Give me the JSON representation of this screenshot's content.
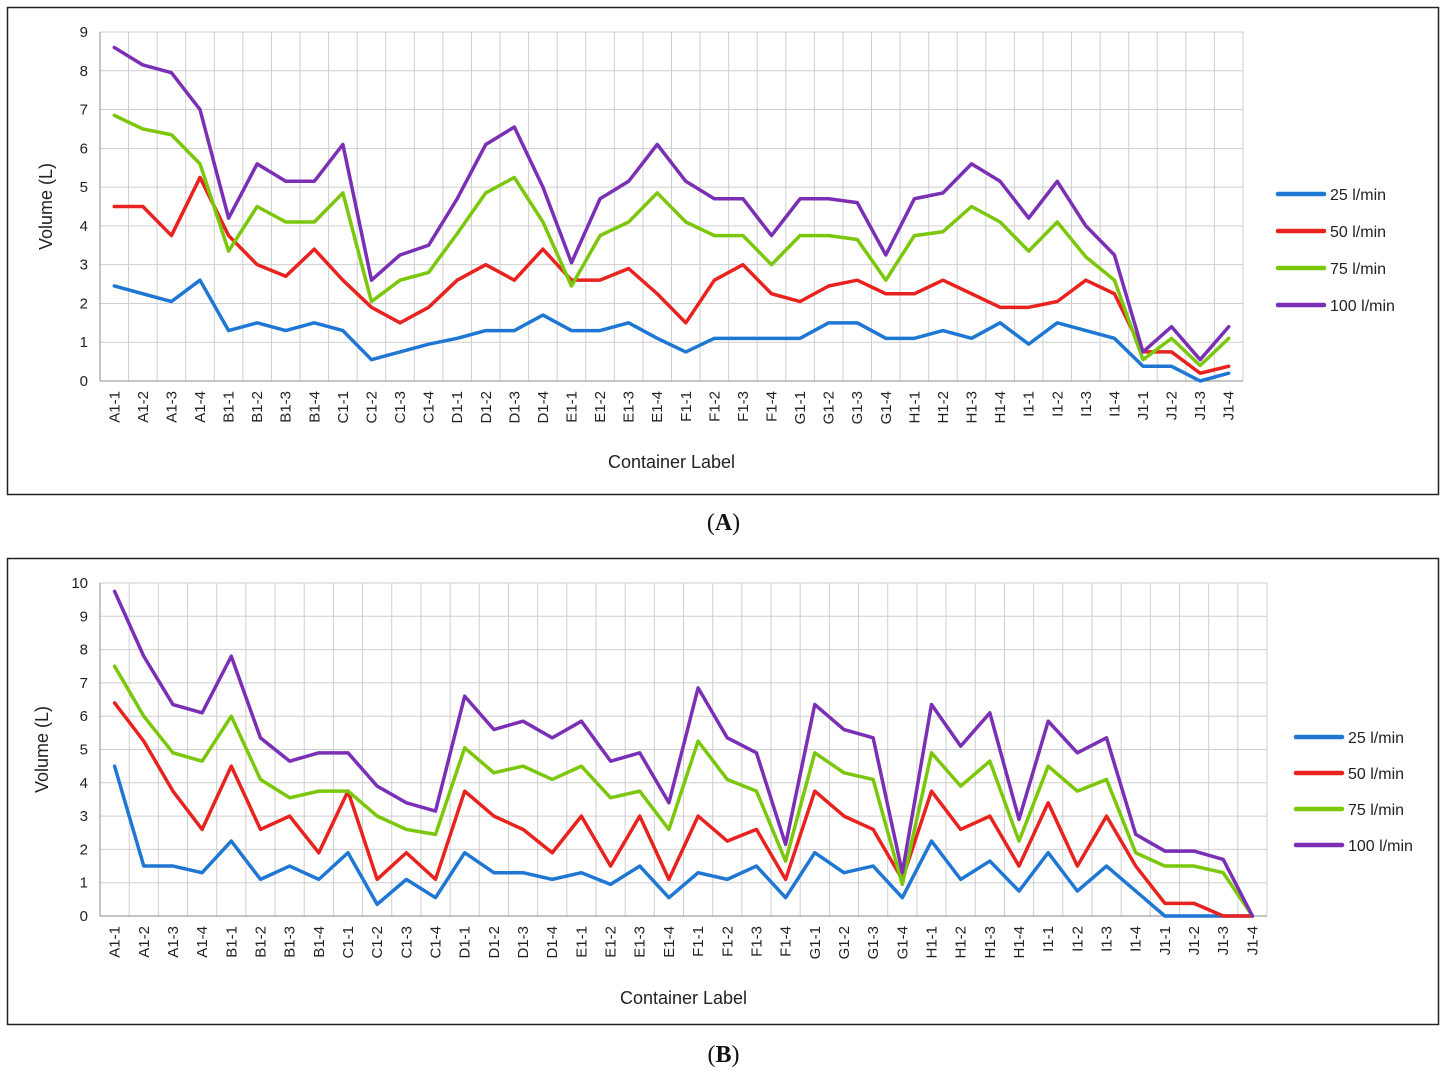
{
  "chart_data": [
    {
      "type": "line",
      "panel_label": "A",
      "xlabel": "Container Label",
      "ylabel": "Volume (L)",
      "ylim": [
        0,
        9
      ],
      "yticks": [
        "0",
        "1",
        "2",
        "3",
        "4",
        "5",
        "6",
        "7",
        "8",
        "9"
      ],
      "grid": true,
      "legend_position": "right",
      "categories": [
        "A1-1",
        "A1-2",
        "A1-3",
        "A1-4",
        "B1-1",
        "B1-2",
        "B1-3",
        "B1-4",
        "C1-1",
        "C1-2",
        "C1-3",
        "C1-4",
        "D1-1",
        "D1-2",
        "D1-3",
        "D1-4",
        "E1-1",
        "E1-2",
        "E1-3",
        "E1-4",
        "F1-1",
        "F1-2",
        "F1-3",
        "F1-4",
        "G1-1",
        "G1-2",
        "G1-3",
        "G1-4",
        "H1-1",
        "H1-2",
        "H1-3",
        "H1-4",
        "I1-1",
        "I1-2",
        "I1-3",
        "I1-4",
        "J1-1",
        "J1-2",
        "J1-3",
        "J1-4"
      ],
      "series": [
        {
          "name": "25 l/min",
          "color": "#1f77d4",
          "values": [
            2.45,
            2.25,
            2.05,
            2.6,
            1.3,
            1.5,
            1.3,
            1.5,
            1.3,
            0.55,
            0.75,
            0.95,
            1.1,
            1.3,
            1.3,
            1.7,
            1.3,
            1.3,
            1.5,
            1.1,
            0.75,
            1.1,
            1.1,
            1.1,
            1.1,
            1.5,
            1.5,
            1.1,
            1.1,
            1.3,
            1.1,
            1.5,
            0.95,
            1.5,
            1.3,
            1.1,
            0.38,
            0.38,
            0.0,
            0.2
          ]
        },
        {
          "name": "50 l/min",
          "color": "#e8231f",
          "values": [
            4.5,
            4.5,
            3.75,
            5.25,
            3.75,
            3.0,
            2.7,
            3.4,
            2.6,
            1.9,
            1.5,
            1.9,
            2.6,
            3.0,
            2.6,
            3.4,
            2.6,
            2.6,
            2.9,
            2.25,
            1.5,
            2.6,
            3.0,
            2.25,
            2.05,
            2.45,
            2.6,
            2.25,
            2.25,
            2.6,
            2.25,
            1.9,
            1.9,
            2.05,
            2.6,
            2.25,
            0.75,
            0.75,
            0.2,
            0.38
          ]
        },
        {
          "name": "75 l/min",
          "color": "#7ac70c",
          "values": [
            6.85,
            6.5,
            6.35,
            5.6,
            3.35,
            4.5,
            4.1,
            4.1,
            4.85,
            2.05,
            2.6,
            2.8,
            3.8,
            4.85,
            5.25,
            4.1,
            2.45,
            3.75,
            4.1,
            4.85,
            4.1,
            3.75,
            3.75,
            3.0,
            3.75,
            3.75,
            3.65,
            2.6,
            3.75,
            3.85,
            4.5,
            4.1,
            3.35,
            4.1,
            3.2,
            2.6,
            0.55,
            1.1,
            0.4,
            1.1
          ]
        },
        {
          "name": "100 l/min",
          "color": "#7b2fb5",
          "values": [
            8.6,
            8.15,
            7.95,
            7.0,
            4.2,
            5.6,
            5.15,
            5.15,
            6.1,
            2.6,
            3.25,
            3.5,
            4.7,
            6.1,
            6.55,
            5.0,
            3.05,
            4.7,
            5.15,
            6.1,
            5.15,
            4.7,
            4.7,
            3.75,
            4.7,
            4.7,
            4.6,
            3.25,
            4.7,
            4.85,
            5.6,
            5.15,
            4.2,
            5.15,
            4.0,
            3.25,
            0.75,
            1.4,
            0.55,
            1.4
          ]
        }
      ]
    },
    {
      "type": "line",
      "panel_label": "B",
      "xlabel": "Container Label",
      "ylabel": "Volume (L)",
      "ylim": [
        0,
        10
      ],
      "yticks": [
        "0",
        "1",
        "2",
        "3",
        "4",
        "5",
        "6",
        "7",
        "8",
        "9",
        "10"
      ],
      "grid": true,
      "legend_position": "right",
      "categories": [
        "A1-1",
        "A1-2",
        "A1-3",
        "A1-4",
        "B1-1",
        "B1-2",
        "B1-3",
        "B1-4",
        "C1-1",
        "C1-2",
        "C1-3",
        "C1-4",
        "D1-1",
        "D1-2",
        "D1-3",
        "D1-4",
        "E1-1",
        "E1-2",
        "E1-3",
        "E1-4",
        "F1-1",
        "F1-2",
        "F1-3",
        "F1-4",
        "G1-1",
        "G1-2",
        "G1-3",
        "G1-4",
        "H1-1",
        "H1-2",
        "H1-3",
        "H1-4",
        "I1-1",
        "I1-2",
        "I1-3",
        "I1-4",
        "J1-1",
        "J1-2",
        "J1-3",
        "J1-4"
      ],
      "series": [
        {
          "name": "25 l/min",
          "color": "#1f77d4",
          "values": [
            4.5,
            1.5,
            1.5,
            1.3,
            2.25,
            1.1,
            1.5,
            1.1,
            1.9,
            0.35,
            1.1,
            0.55,
            1.9,
            1.3,
            1.3,
            1.1,
            1.3,
            0.95,
            1.5,
            0.55,
            1.3,
            1.1,
            1.5,
            0.55,
            1.9,
            1.3,
            1.5,
            0.55,
            2.25,
            1.1,
            1.65,
            0.75,
            1.9,
            0.75,
            1.5,
            0.75,
            0.0,
            0.0,
            0.0,
            0.0
          ]
        },
        {
          "name": "50 l/min",
          "color": "#e8231f",
          "values": [
            6.4,
            5.25,
            3.75,
            2.6,
            4.5,
            2.6,
            3.0,
            1.9,
            3.75,
            1.1,
            1.9,
            1.1,
            3.75,
            3.0,
            2.6,
            1.9,
            3.0,
            1.5,
            3.0,
            1.1,
            3.0,
            2.25,
            2.6,
            1.1,
            3.75,
            3.0,
            2.6,
            1.1,
            3.75,
            2.6,
            3.0,
            1.5,
            3.4,
            1.5,
            3.0,
            1.5,
            0.38,
            0.38,
            0.0,
            0.0
          ]
        },
        {
          "name": "75 l/min",
          "color": "#7ac70c",
          "values": [
            7.5,
            6.0,
            4.9,
            4.65,
            6.0,
            4.1,
            3.55,
            3.75,
            3.75,
            3.0,
            2.6,
            2.45,
            5.05,
            4.3,
            4.5,
            4.1,
            4.5,
            3.55,
            3.75,
            2.6,
            5.25,
            4.1,
            3.75,
            1.65,
            4.9,
            4.3,
            4.1,
            0.95,
            4.9,
            3.9,
            4.65,
            2.25,
            4.5,
            3.75,
            4.1,
            1.9,
            1.5,
            1.5,
            1.3,
            0.0
          ]
        },
        {
          "name": "100 l/min",
          "color": "#7b2fb5",
          "values": [
            9.75,
            7.8,
            6.35,
            6.1,
            7.8,
            5.35,
            4.65,
            4.9,
            4.9,
            3.9,
            3.4,
            3.15,
            6.6,
            5.6,
            5.85,
            5.35,
            5.85,
            4.65,
            4.9,
            3.4,
            6.85,
            5.35,
            4.9,
            2.15,
            6.35,
            5.6,
            5.35,
            1.3,
            6.35,
            5.1,
            6.1,
            2.9,
            5.85,
            4.9,
            5.35,
            2.45,
            1.95,
            1.95,
            1.7,
            0.0
          ]
        }
      ]
    }
  ],
  "captions": {
    "a_open": "(",
    "a_label": "A",
    "a_close": ")",
    "b_open": "(",
    "b_label": "B",
    "b_close": ")"
  }
}
